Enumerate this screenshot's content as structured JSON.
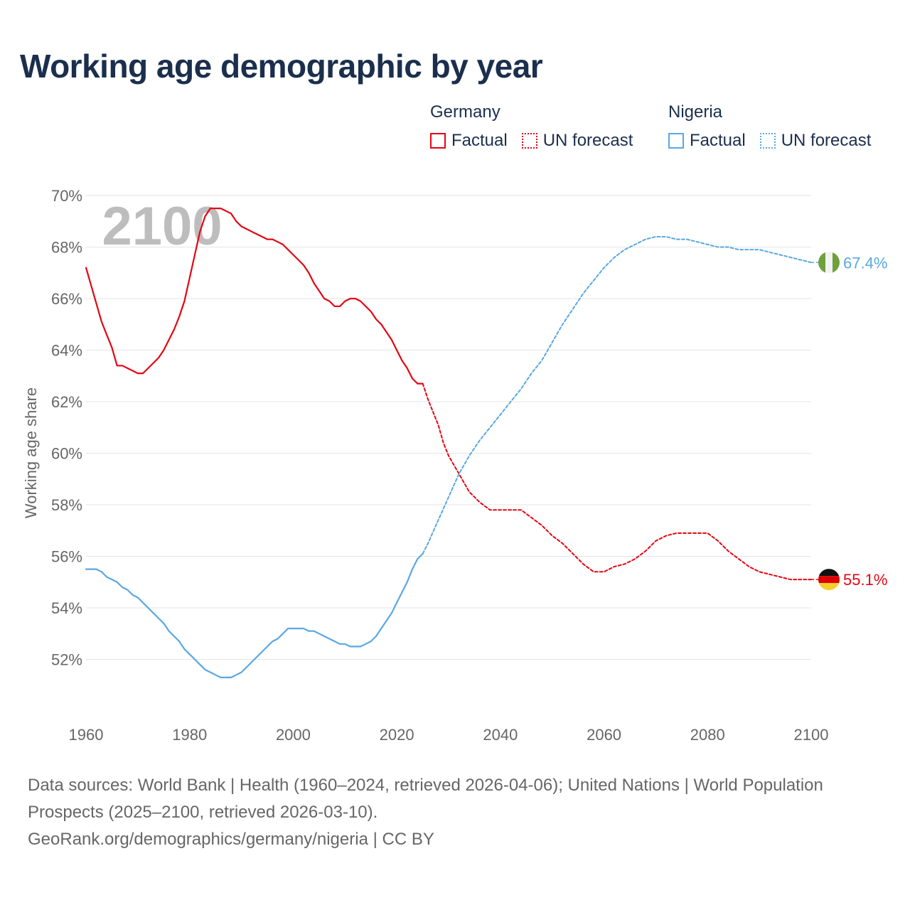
{
  "title": "Working age demographic by year",
  "legend": {
    "groups": [
      {
        "name": "Germany",
        "factual_label": "Factual",
        "forecast_label": "UN forecast",
        "color": "#e30613"
      },
      {
        "name": "Nigeria",
        "factual_label": "Factual",
        "forecast_label": "UN forecast",
        "color": "#5aa7e4"
      }
    ]
  },
  "year_watermark": "2100",
  "source": {
    "line1": "Data sources: World Bank | Health (1960–2024, retrieved 2026-04-06); United Nations | World Population Prospects (2025–2100, retrieved 2026-03-10).",
    "line2": "GeoRank.org/demographics/germany/nigeria | CC BY"
  },
  "chart_data": {
    "type": "line",
    "title": "Working age demographic by year",
    "xlabel": "",
    "ylabel": "Working age share",
    "xlim": [
      1960,
      2100
    ],
    "ylim": [
      50,
      70
    ],
    "x_ticks": [
      1960,
      1980,
      2000,
      2020,
      2040,
      2060,
      2080,
      2100
    ],
    "x_tick_labels": [
      "1960",
      "1980",
      "2000",
      "2020",
      "2040",
      "2060",
      "2080",
      "2100"
    ],
    "y_ticks": [
      52,
      54,
      56,
      58,
      60,
      62,
      64,
      66,
      68,
      70
    ],
    "y_tick_labels": [
      "52%",
      "54%",
      "56%",
      "58%",
      "60%",
      "62%",
      "64%",
      "66%",
      "68%",
      "70%"
    ],
    "grid": true,
    "series": [
      {
        "name": "Germany",
        "part": "Factual",
        "color": "#e30613",
        "dashed": false,
        "x": [
          1960,
          1961,
          1962,
          1963,
          1964,
          1965,
          1966,
          1967,
          1968,
          1969,
          1970,
          1971,
          1972,
          1973,
          1974,
          1975,
          1976,
          1977,
          1978,
          1979,
          1980,
          1981,
          1982,
          1983,
          1984,
          1985,
          1986,
          1987,
          1988,
          1989,
          1990,
          1991,
          1992,
          1993,
          1994,
          1995,
          1996,
          1997,
          1998,
          1999,
          2000,
          2001,
          2002,
          2003,
          2004,
          2005,
          2006,
          2007,
          2008,
          2009,
          2010,
          2011,
          2012,
          2013,
          2014,
          2015,
          2016,
          2017,
          2018,
          2019,
          2020,
          2021,
          2022,
          2023,
          2024,
          2025
        ],
        "values": [
          67.2,
          66.5,
          65.8,
          65.1,
          64.6,
          64.1,
          63.4,
          63.4,
          63.3,
          63.2,
          63.1,
          63.1,
          63.3,
          63.5,
          63.7,
          64.0,
          64.4,
          64.8,
          65.3,
          65.9,
          66.8,
          67.7,
          68.6,
          69.2,
          69.5,
          69.5,
          69.5,
          69.4,
          69.3,
          69.0,
          68.8,
          68.7,
          68.6,
          68.5,
          68.4,
          68.3,
          68.3,
          68.2,
          68.1,
          67.9,
          67.7,
          67.5,
          67.3,
          67.0,
          66.6,
          66.3,
          66.0,
          65.9,
          65.7,
          65.7,
          65.9,
          66.0,
          66.0,
          65.9,
          65.7,
          65.5,
          65.2,
          65.0,
          64.7,
          64.4,
          64.0,
          63.6,
          63.3,
          62.9,
          62.7,
          62.7
        ]
      },
      {
        "name": "Germany",
        "part": "UN forecast",
        "color": "#e30613",
        "dashed": true,
        "x": [
          2025,
          2026,
          2027,
          2028,
          2029,
          2030,
          2032,
          2034,
          2036,
          2038,
          2040,
          2044,
          2046,
          2048,
          2050,
          2052,
          2054,
          2056,
          2058,
          2060,
          2062,
          2064,
          2066,
          2068,
          2070,
          2072,
          2074,
          2076,
          2078,
          2080,
          2082,
          2084,
          2086,
          2088,
          2090,
          2092,
          2094,
          2096,
          2098,
          2100
        ],
        "values": [
          62.7,
          62.1,
          61.6,
          61.1,
          60.4,
          59.9,
          59.2,
          58.5,
          58.1,
          57.8,
          57.8,
          57.8,
          57.5,
          57.2,
          56.8,
          56.5,
          56.1,
          55.7,
          55.4,
          55.4,
          55.6,
          55.7,
          55.9,
          56.2,
          56.6,
          56.8,
          56.9,
          56.9,
          56.9,
          56.9,
          56.6,
          56.2,
          55.9,
          55.6,
          55.4,
          55.3,
          55.2,
          55.1,
          55.1,
          55.1
        ]
      },
      {
        "name": "Nigeria",
        "part": "Factual",
        "color": "#5aa7e4",
        "dashed": false,
        "x": [
          1960,
          1961,
          1962,
          1963,
          1964,
          1965,
          1966,
          1967,
          1968,
          1969,
          1970,
          1971,
          1972,
          1973,
          1974,
          1975,
          1976,
          1977,
          1978,
          1979,
          1980,
          1981,
          1982,
          1983,
          1984,
          1985,
          1986,
          1987,
          1988,
          1989,
          1990,
          1991,
          1992,
          1993,
          1994,
          1995,
          1996,
          1997,
          1998,
          1999,
          2000,
          2001,
          2002,
          2003,
          2004,
          2005,
          2006,
          2007,
          2008,
          2009,
          2010,
          2011,
          2012,
          2013,
          2014,
          2015,
          2016,
          2017,
          2018,
          2019,
          2020,
          2021,
          2022,
          2023,
          2024,
          2025
        ],
        "values": [
          55.5,
          55.5,
          55.5,
          55.4,
          55.2,
          55.1,
          55.0,
          54.8,
          54.7,
          54.5,
          54.4,
          54.2,
          54.0,
          53.8,
          53.6,
          53.4,
          53.1,
          52.9,
          52.7,
          52.4,
          52.2,
          52.0,
          51.8,
          51.6,
          51.5,
          51.4,
          51.3,
          51.3,
          51.3,
          51.4,
          51.5,
          51.7,
          51.9,
          52.1,
          52.3,
          52.5,
          52.7,
          52.8,
          53.0,
          53.2,
          53.2,
          53.2,
          53.2,
          53.1,
          53.1,
          53.0,
          52.9,
          52.8,
          52.7,
          52.6,
          52.6,
          52.5,
          52.5,
          52.5,
          52.6,
          52.7,
          52.9,
          53.2,
          53.5,
          53.8,
          54.2,
          54.6,
          55.0,
          55.5,
          55.9,
          56.1
        ]
      },
      {
        "name": "Nigeria",
        "part": "UN forecast",
        "color": "#5aa7e4",
        "dashed": true,
        "x": [
          2025,
          2026,
          2028,
          2030,
          2032,
          2034,
          2036,
          2038,
          2040,
          2042,
          2044,
          2046,
          2048,
          2050,
          2052,
          2054,
          2056,
          2058,
          2060,
          2062,
          2064,
          2066,
          2068,
          2070,
          2072,
          2074,
          2076,
          2078,
          2080,
          2082,
          2084,
          2086,
          2088,
          2090,
          2092,
          2094,
          2096,
          2098,
          2100
        ],
        "values": [
          56.1,
          56.5,
          57.4,
          58.3,
          59.2,
          59.9,
          60.5,
          61.0,
          61.5,
          62.0,
          62.5,
          63.1,
          63.6,
          64.3,
          65.0,
          65.6,
          66.2,
          66.7,
          67.2,
          67.6,
          67.9,
          68.1,
          68.3,
          68.4,
          68.4,
          68.3,
          68.3,
          68.2,
          68.1,
          68.0,
          68.0,
          67.9,
          67.9,
          67.9,
          67.8,
          67.7,
          67.6,
          67.5,
          67.4
        ]
      }
    ],
    "end_labels": [
      {
        "name": "Nigeria",
        "text": "67.4%",
        "value": 67.4,
        "color": "#5aa7e4",
        "flag": "nigeria-flag-icon"
      },
      {
        "name": "Germany",
        "text": "55.1%",
        "value": 55.1,
        "color": "#e30613",
        "flag": "germany-flag-icon"
      }
    ]
  }
}
